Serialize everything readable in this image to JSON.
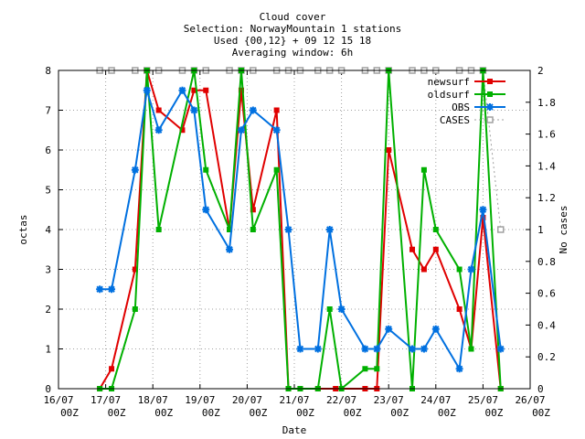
{
  "chart_data": {
    "type": "line",
    "title": [
      "Cloud cover",
      "Selection: NorwayMountain      1 stations",
      "Used {00,12} + 09 12 15 18",
      "Averaging window:  6h"
    ],
    "xlabel": "Date",
    "ylabel": "octas",
    "y2label": "No cases",
    "xlim": [
      0,
      10
    ],
    "ylim": [
      0,
      8
    ],
    "y2lim": [
      0,
      2
    ],
    "grid": true,
    "legend_position": "top-right",
    "x_ticks": [
      {
        "x": 0,
        "l1": "16/07",
        "l2": "00Z"
      },
      {
        "x": 1,
        "l1": "17/07",
        "l2": "00Z"
      },
      {
        "x": 2,
        "l1": "18/07",
        "l2": "00Z"
      },
      {
        "x": 3,
        "l1": "19/07",
        "l2": "00Z"
      },
      {
        "x": 4,
        "l1": "20/07",
        "l2": "00Z"
      },
      {
        "x": 5,
        "l1": "21/07",
        "l2": "00Z"
      },
      {
        "x": 6,
        "l1": "22/07",
        "l2": "00Z"
      },
      {
        "x": 7,
        "l1": "23/07",
        "l2": "00Z"
      },
      {
        "x": 8,
        "l1": "24/07",
        "l2": "00Z"
      },
      {
        "x": 9,
        "l1": "25/07",
        "l2": "00Z"
      },
      {
        "x": 10,
        "l1": "26/07",
        "l2": "00Z"
      }
    ],
    "y_ticks": [
      "0",
      "1",
      "2",
      "3",
      "4",
      "5",
      "6",
      "7",
      "8"
    ],
    "y2_ticks": [
      "0",
      "0.2",
      "0.4",
      "0.6",
      "0.8",
      "1",
      "1.2",
      "1.4",
      "1.6",
      "1.8",
      "2"
    ],
    "series": [
      {
        "name": "newsurf",
        "color": "#e00000",
        "marker": "square",
        "axis": "y",
        "points": [
          [
            0.875,
            0
          ],
          [
            1.125,
            0.5
          ],
          [
            1.625,
            3
          ],
          [
            1.875,
            8
          ],
          [
            2.125,
            7
          ],
          [
            2.625,
            6.5
          ],
          [
            2.875,
            7.5
          ],
          [
            3.125,
            7.5
          ],
          [
            3.625,
            4
          ],
          [
            3.875,
            7.5
          ],
          [
            4.125,
            4.5
          ],
          [
            4.625,
            7
          ],
          [
            4.875,
            0
          ],
          [
            5.125,
            0
          ],
          [
            5.5,
            0
          ],
          [
            5.875,
            0
          ],
          [
            6.5,
            0
          ],
          [
            6.75,
            0
          ],
          [
            7.0,
            6
          ],
          [
            7.5,
            3.5
          ],
          [
            7.75,
            3
          ],
          [
            8.0,
            3.5
          ],
          [
            8.5,
            2
          ],
          [
            8.75,
            1
          ],
          [
            9.0,
            4.3
          ],
          [
            9.375,
            0
          ]
        ]
      },
      {
        "name": "oldsurf",
        "color": "#00b000",
        "marker": "square",
        "axis": "y",
        "points": [
          [
            0.875,
            0
          ],
          [
            1.125,
            0
          ],
          [
            1.625,
            2
          ],
          [
            1.875,
            8
          ],
          [
            2.125,
            4
          ],
          [
            2.875,
            8
          ],
          [
            3.125,
            5.5
          ],
          [
            3.625,
            4
          ],
          [
            3.875,
            8
          ],
          [
            4.125,
            4
          ],
          [
            4.625,
            5.5
          ],
          [
            4.875,
            0
          ],
          [
            5.125,
            0
          ],
          [
            5.5,
            0
          ],
          [
            5.75,
            2
          ],
          [
            6.0,
            0
          ],
          [
            6.5,
            0.5
          ],
          [
            6.75,
            0.5
          ],
          [
            7.0,
            8
          ],
          [
            7.5,
            0
          ],
          [
            7.75,
            5.5
          ],
          [
            8.0,
            4
          ],
          [
            8.5,
            3
          ],
          [
            8.75,
            1
          ],
          [
            9.0,
            8
          ],
          [
            9.375,
            0
          ]
        ]
      },
      {
        "name": "OBS",
        "color": "#0070e0",
        "marker": "star",
        "axis": "y",
        "points": [
          [
            0.875,
            2.5
          ],
          [
            1.125,
            2.5
          ],
          [
            1.625,
            5.5
          ],
          [
            1.875,
            7.5
          ],
          [
            2.125,
            6.5
          ],
          [
            2.625,
            7.5
          ],
          [
            2.875,
            7
          ],
          [
            3.125,
            4.5
          ],
          [
            3.625,
            3.5
          ],
          [
            3.875,
            6.5
          ],
          [
            4.125,
            7
          ],
          [
            4.625,
            6.5
          ],
          [
            4.875,
            4
          ],
          [
            5.125,
            1
          ],
          [
            5.5,
            1
          ],
          [
            5.75,
            4
          ],
          [
            6.0,
            2
          ],
          [
            6.5,
            1
          ],
          [
            6.75,
            1
          ],
          [
            7.0,
            1.5
          ],
          [
            7.5,
            1
          ],
          [
            7.75,
            1
          ],
          [
            8.0,
            1.5
          ],
          [
            8.5,
            0.5
          ],
          [
            8.75,
            3
          ],
          [
            9.0,
            4.5
          ],
          [
            9.375,
            1
          ]
        ]
      },
      {
        "name": "CASES",
        "color": "#a0a0a0",
        "marker": "open-square",
        "axis": "y2",
        "dashed": true,
        "points": [
          [
            0.875,
            2
          ],
          [
            1.125,
            2
          ],
          [
            1.625,
            2
          ],
          [
            1.875,
            2
          ],
          [
            2.125,
            2
          ],
          [
            2.625,
            2
          ],
          [
            2.875,
            2
          ],
          [
            3.125,
            2
          ],
          [
            3.625,
            2
          ],
          [
            3.875,
            2
          ],
          [
            4.125,
            2
          ],
          [
            4.625,
            2
          ],
          [
            4.875,
            2
          ],
          [
            5.125,
            2
          ],
          [
            5.5,
            2
          ],
          [
            5.75,
            2
          ],
          [
            6.0,
            2
          ],
          [
            6.5,
            2
          ],
          [
            6.75,
            2
          ],
          [
            7.0,
            2
          ],
          [
            7.5,
            2
          ],
          [
            7.75,
            2
          ],
          [
            8.0,
            2
          ],
          [
            8.5,
            2
          ],
          [
            8.75,
            2
          ],
          [
            9.0,
            2
          ],
          [
            9.375,
            1
          ]
        ]
      }
    ]
  }
}
